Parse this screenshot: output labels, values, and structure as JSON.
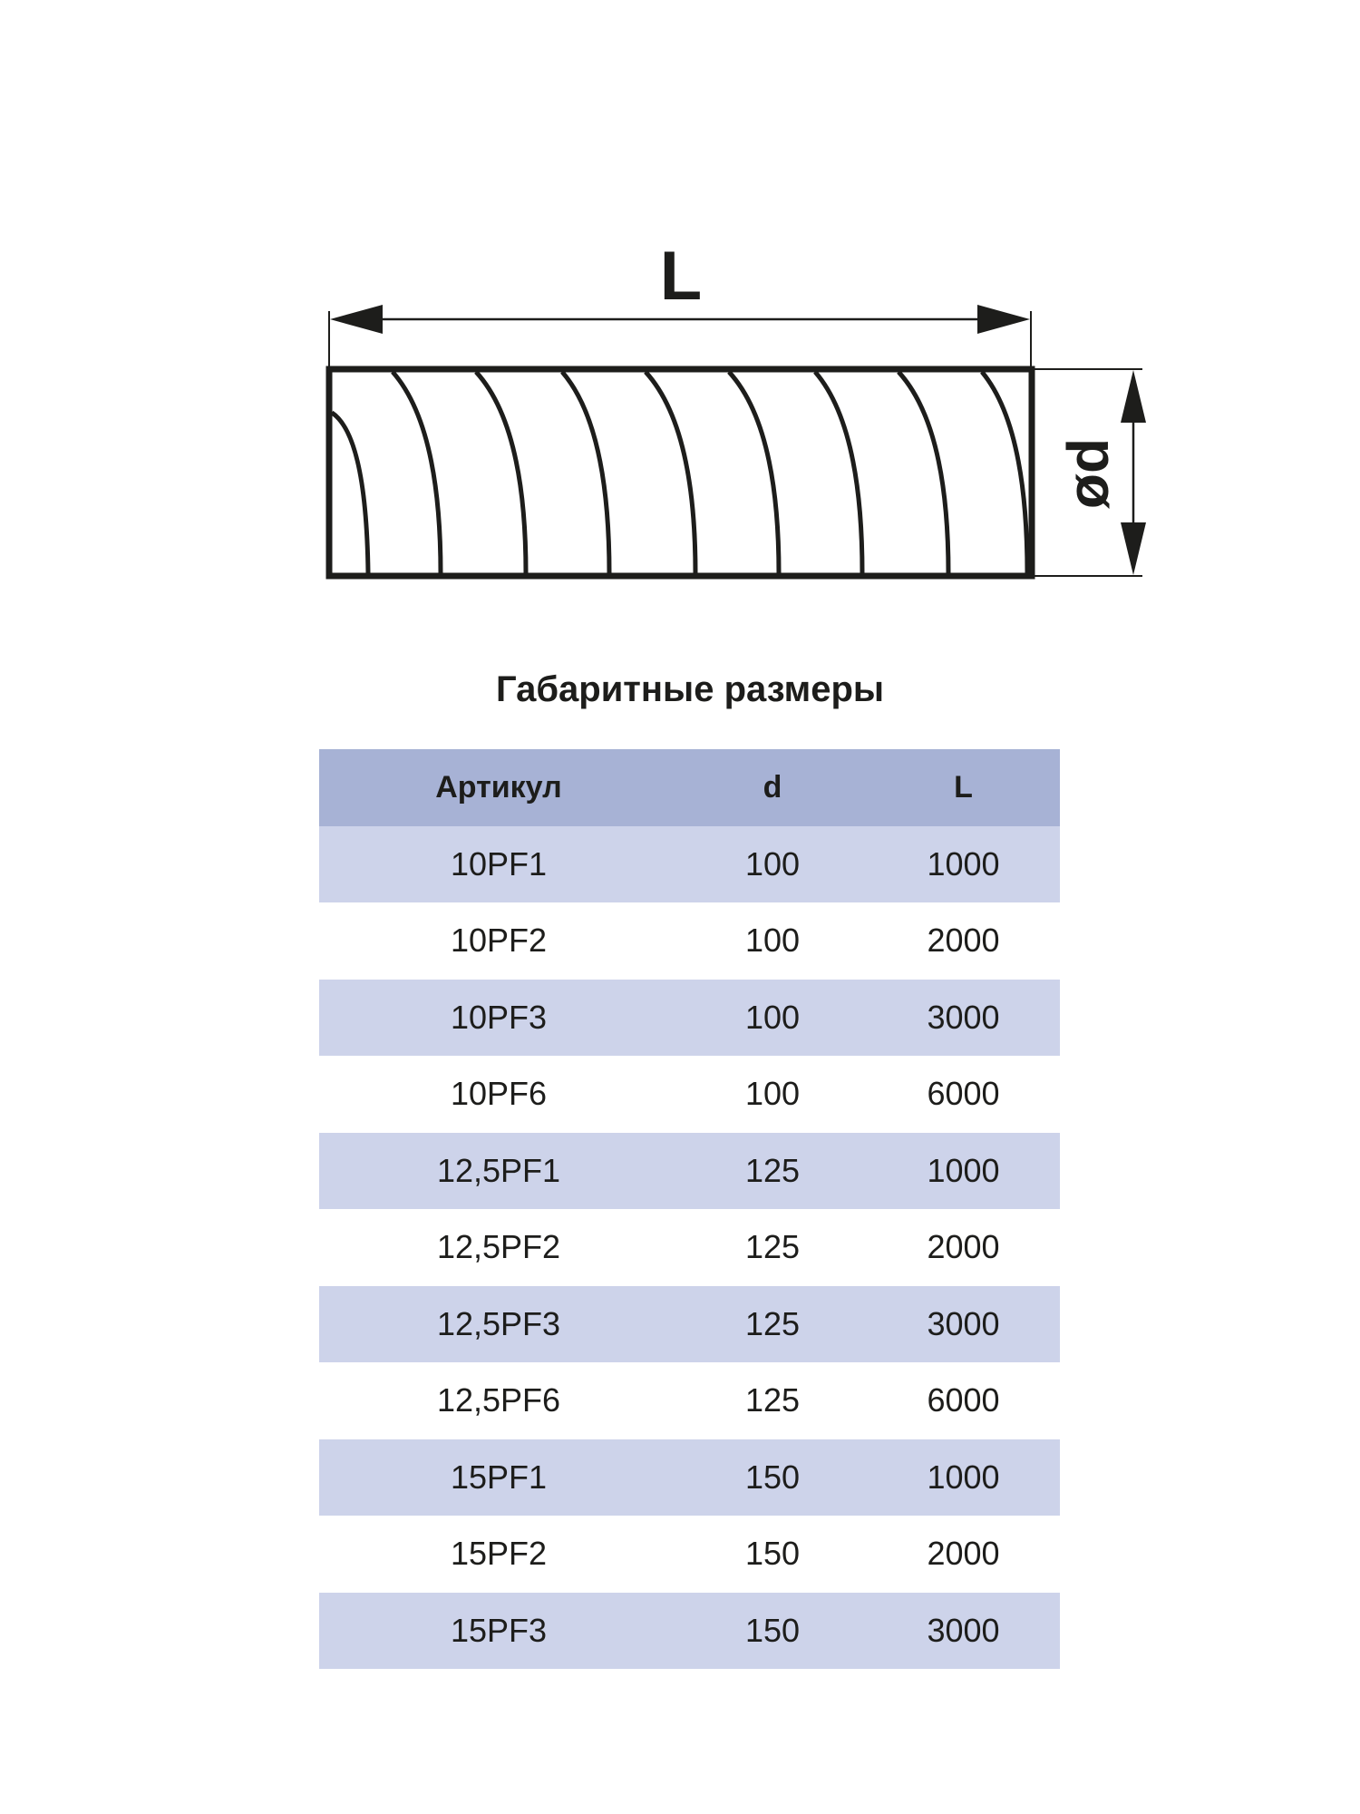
{
  "drawing": {
    "length_label": "L",
    "diameter_label": "ød"
  },
  "title": "Габаритные размеры",
  "colors": {
    "header_bg": "#a7b2d5",
    "odd_row_bg": "#cdd3ea",
    "stroke": "#1d1d1b"
  },
  "table": {
    "headers": [
      "Артикул",
      "d",
      "L"
    ],
    "rows": [
      [
        "10PF1",
        "100",
        "1000"
      ],
      [
        "10PF2",
        "100",
        "2000"
      ],
      [
        "10PF3",
        "100",
        "3000"
      ],
      [
        "10PF6",
        "100",
        "6000"
      ],
      [
        "12,5PF1",
        "125",
        "1000"
      ],
      [
        "12,5PF2",
        "125",
        "2000"
      ],
      [
        "12,5PF3",
        "125",
        "3000"
      ],
      [
        "12,5PF6",
        "125",
        "6000"
      ],
      [
        "15PF1",
        "150",
        "1000"
      ],
      [
        "15PF2",
        "150",
        "2000"
      ],
      [
        "15PF3",
        "150",
        "3000"
      ]
    ]
  }
}
